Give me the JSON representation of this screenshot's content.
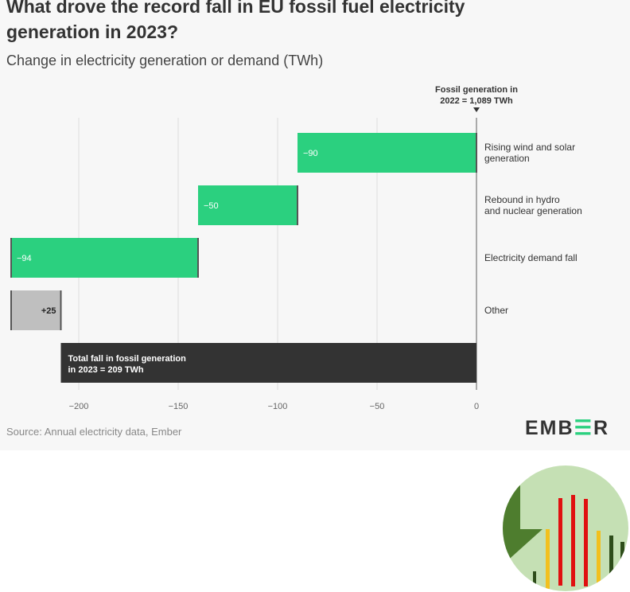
{
  "chart_data": {
    "type": "waterfall",
    "title": "What drove the record fall in EU fossil fuel electricity generation in 2023?",
    "subtitle": "Change in electricity generation or demand (TWh)",
    "xlim": [
      -235,
      0
    ],
    "xticks": [
      -200,
      -150,
      -100,
      -50,
      0
    ],
    "xtick_labels": [
      "−200",
      "−150",
      "−100",
      "−50",
      "0"
    ],
    "grid": true,
    "start_annotation": [
      "Fossil generation in",
      "2022 = 1,089 TWh"
    ],
    "bars": [
      {
        "category": [
          "Rising wind and solar",
          "generation"
        ],
        "start": 0,
        "end": -90,
        "value": -90,
        "label": "−90",
        "color": "#2bd07f",
        "label_color": "#ffffff"
      },
      {
        "category": [
          "Rebound in hydro",
          "and nuclear generation"
        ],
        "start": -90,
        "end": -140,
        "value": -50,
        "label": "−50",
        "color": "#2bd07f",
        "label_color": "#ffffff"
      },
      {
        "category": [
          "Electricity demand fall"
        ],
        "start": -140,
        "end": -234,
        "value": -94,
        "label": "−94",
        "color": "#2bd07f",
        "label_color": "#ffffff"
      },
      {
        "category": [
          "Other"
        ],
        "start": -234,
        "end": -209,
        "value": 25,
        "label": "+25",
        "color": "#bfbfbf",
        "label_color": "#222222"
      },
      {
        "category": [],
        "start": 0,
        "end": -209,
        "value": -209,
        "label": "",
        "color": "#333333",
        "label_color": "#ffffff",
        "total_label": [
          "Total fall in fossil generation",
          "in 2023 = 209 TWh"
        ]
      }
    ]
  },
  "footer": {
    "source": "Source: Annual electricity data, Ember",
    "logo_pre": "EMB",
    "logo_e": "Ǝ",
    "logo_post": "R"
  },
  "colors": {
    "accent": "#2bd07f",
    "background": "#f7f7f7"
  }
}
